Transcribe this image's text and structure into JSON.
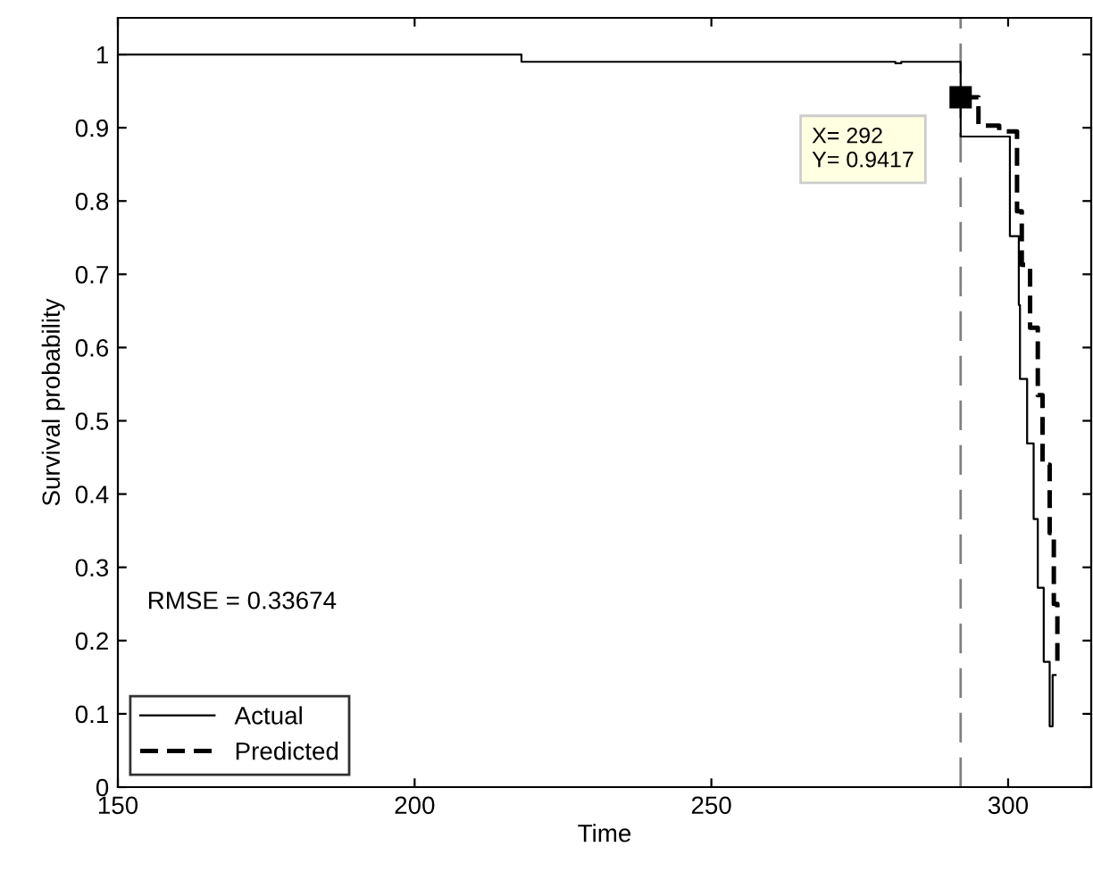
{
  "chart_data": {
    "type": "step",
    "xlabel": "Time",
    "ylabel": "Survival probability",
    "series": [
      {
        "name": "Actual",
        "color": "#000000",
        "line_style": "solid",
        "x": [
          150,
          218,
          281,
          282,
          292,
          300.3,
          301.8,
          302.0,
          303.2,
          304.3,
          305,
          306,
          307,
          307.5,
          308
        ],
        "values": [
          1,
          0.99,
          0.988,
          0.99,
          0.888,
          0.752,
          0.658,
          0.557,
          0.469,
          0.366,
          0.272,
          0.171,
          0.083,
          0.153,
          0.153
        ]
      },
      {
        "name": "Predicted",
        "color": "#000000",
        "line_style": "dashed",
        "x": [
          292,
          295,
          298.5,
          301.5,
          302.3,
          303.7,
          305,
          305.8,
          307,
          307.7,
          308.3,
          308.6
        ],
        "values": [
          0.9417,
          0.903,
          0.895,
          0.786,
          0.713,
          0.627,
          0.535,
          0.44,
          0.347,
          0.25,
          0.168,
          0.168
        ]
      }
    ],
    "xlim": [
      150,
      314
    ],
    "xticks": [
      150,
      200,
      250,
      300
    ],
    "ylim": [
      0,
      1.05
    ],
    "yticks": [
      0,
      0.1,
      0.2,
      0.3,
      0.4,
      0.5,
      0.6,
      0.7,
      0.8,
      0.9,
      1
    ],
    "ref_lines": [
      {
        "axis": "x",
        "value": 292,
        "color": "#808080",
        "line_style": "dashed"
      }
    ],
    "annotations": [
      {
        "text": "X= 292\nY= 0.9417",
        "x": 292,
        "y": 0.9417
      },
      "RMSE = 0.33674"
    ],
    "legend": "bottom left",
    "grid": false
  }
}
